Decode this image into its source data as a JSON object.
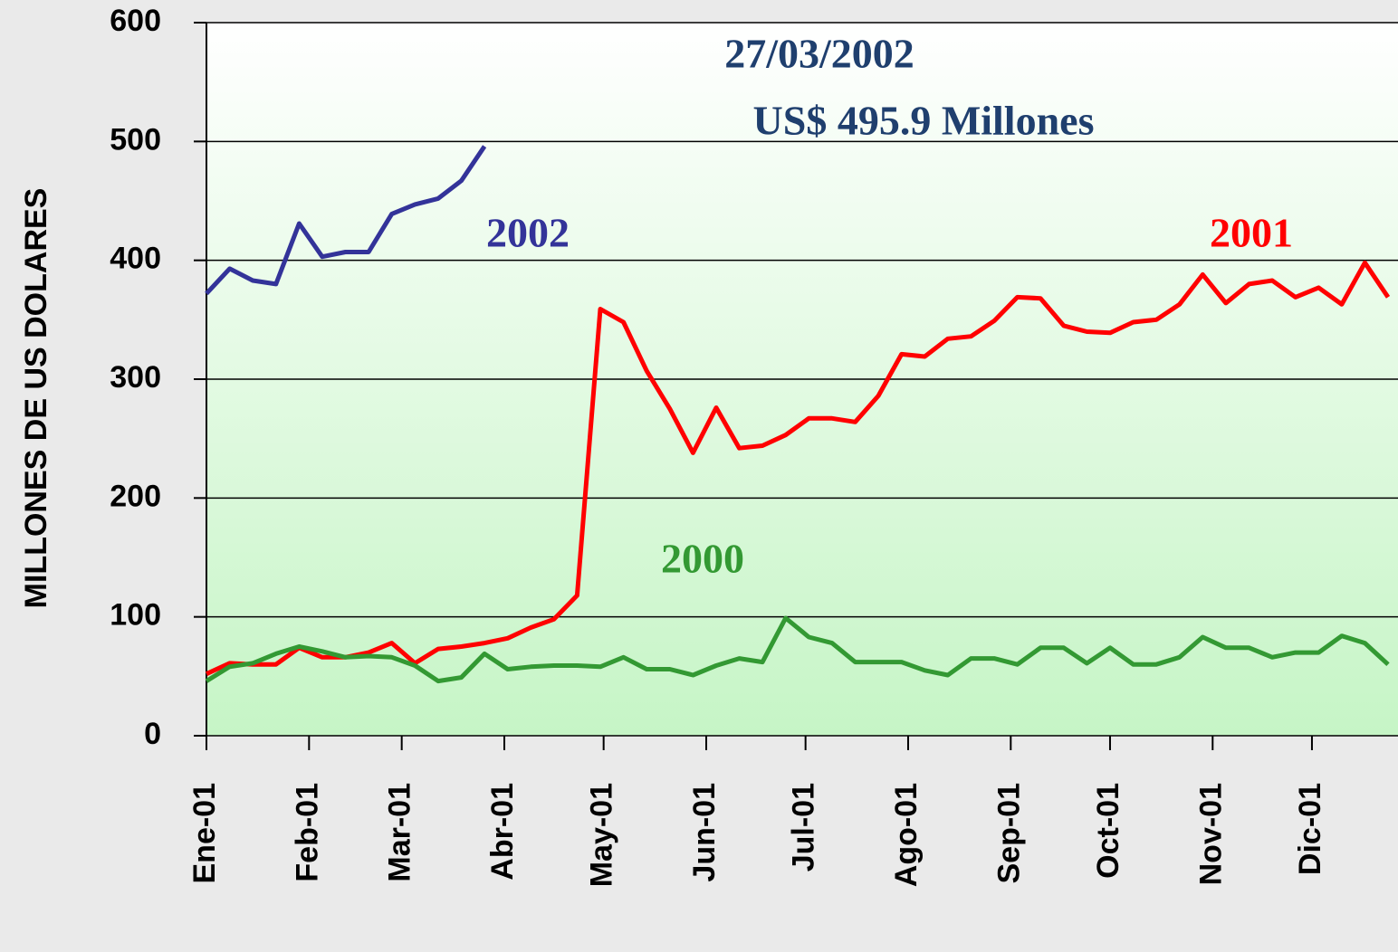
{
  "chart_data": {
    "type": "line",
    "y_label": "MILLONES DE US DOLARES",
    "annotations": [
      "27/03/2002",
      "US$  495.9 Millones"
    ],
    "xlim": [
      0,
      360
    ],
    "xticks": [
      {
        "value": 0,
        "label": "Ene-01"
      },
      {
        "value": 31,
        "label": "Feb-01"
      },
      {
        "value": 59,
        "label": "Mar-01"
      },
      {
        "value": 90,
        "label": "Abr-01"
      },
      {
        "value": 120,
        "label": "May-01"
      },
      {
        "value": 151,
        "label": "Jun-01"
      },
      {
        "value": 181,
        "label": "Jul-01"
      },
      {
        "value": 212,
        "label": "Ago-01"
      },
      {
        "value": 243,
        "label": "Sep-01"
      },
      {
        "value": 273,
        "label": "Oct-01"
      },
      {
        "value": 304,
        "label": "Nov-01"
      },
      {
        "value": 334,
        "label": "Dic-01"
      }
    ],
    "ylim": [
      0,
      600
    ],
    "yticks": [
      0,
      100,
      200,
      300,
      400,
      500,
      600
    ],
    "grid": true,
    "x": [
      0,
      7,
      14,
      21,
      28,
      35,
      42,
      49,
      56,
      63,
      70,
      77,
      84,
      91,
      98,
      105,
      112,
      119,
      126,
      133,
      140,
      147,
      154,
      161,
      168,
      175,
      182,
      189,
      196,
      203,
      210,
      217,
      224,
      231,
      238,
      245,
      252,
      259,
      266,
      273,
      280,
      287,
      294,
      301,
      308,
      315,
      322,
      329,
      336,
      343,
      350,
      357
    ],
    "series": [
      {
        "name": "2002",
        "color": "#333399",
        "values": [
          372,
          393,
          383,
          380,
          431,
          403,
          407,
          407,
          439,
          447,
          452,
          467,
          495.9,
          null,
          null,
          null,
          null,
          null,
          null,
          null,
          null,
          null,
          null,
          null,
          null,
          null,
          null,
          null,
          null,
          null,
          null,
          null,
          null,
          null,
          null,
          null,
          null,
          null,
          null,
          null,
          null,
          null,
          null,
          null,
          null,
          null,
          null,
          null,
          null,
          null,
          null,
          null
        ]
      },
      {
        "name": "2001",
        "color": "#ff0000",
        "values": [
          52,
          61,
          60,
          60,
          74,
          66,
          66,
          70,
          78,
          61,
          73,
          75,
          78,
          82,
          91,
          98,
          118,
          359,
          348,
          307,
          275,
          238,
          276,
          242,
          244,
          253,
          267,
          267,
          264,
          286,
          321,
          319,
          334,
          336,
          349,
          369,
          368,
          345,
          340,
          339,
          348,
          350,
          363,
          388,
          364,
          380,
          383,
          369,
          377,
          363,
          398,
          369
        ]
      },
      {
        "name": "2000",
        "color": "#339933",
        "values": [
          46,
          58,
          61,
          69,
          75,
          71,
          66,
          67,
          66,
          59,
          46,
          49,
          69,
          56,
          58,
          59,
          59,
          58,
          66,
          56,
          56,
          51,
          59,
          65,
          62,
          99,
          83,
          78,
          62,
          62,
          62,
          55,
          51,
          65,
          65,
          60,
          74,
          74,
          61,
          74,
          60,
          60,
          66,
          83,
          74,
          74,
          66,
          70,
          70,
          84,
          78,
          60
        ]
      }
    ]
  }
}
